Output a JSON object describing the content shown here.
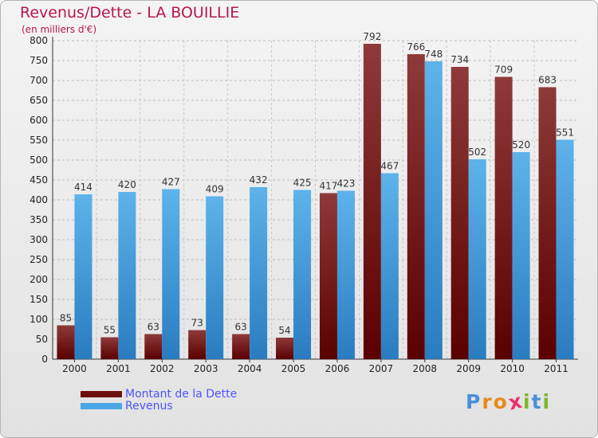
{
  "header": {
    "title": "Revenus/Dette - LA BOUILLIE",
    "subtitle": "(en milliers d'€)"
  },
  "colors": {
    "debt": "#7a1f1f",
    "revenue": "#55aee8",
    "title": "#b8174a",
    "legend_text": "#4f52ff"
  },
  "chart_data": {
    "type": "bar",
    "categories": [
      "2000",
      "2001",
      "2002",
      "2003",
      "2004",
      "2005",
      "2006",
      "2007",
      "2008",
      "2009",
      "2010",
      "2011"
    ],
    "series": [
      {
        "name": "Montant de la Dette",
        "values": [
          85,
          55,
          63,
          73,
          63,
          54,
          417,
          792,
          766,
          734,
          709,
          683
        ]
      },
      {
        "name": "Revenus",
        "values": [
          414,
          420,
          427,
          409,
          432,
          425,
          423,
          467,
          748,
          502,
          520,
          551
        ]
      }
    ],
    "ylim": [
      0,
      800
    ],
    "yticks": [
      0,
      50,
      100,
      150,
      200,
      250,
      300,
      350,
      400,
      450,
      500,
      550,
      600,
      650,
      700,
      750,
      800
    ],
    "grid": true,
    "legend_position": "bottom-left"
  },
  "legend": {
    "items": [
      {
        "label": "Montant de la Dette",
        "color": "#6e0f0f"
      },
      {
        "label": "Revenus",
        "color": "#4aa6e6"
      }
    ]
  },
  "logo": {
    "letters": [
      "P",
      "r",
      "o",
      "x",
      "i",
      "t",
      "i"
    ],
    "colors": [
      "#4a8fd8",
      "#e88a1a",
      "#e88a1a",
      "#e8306e",
      "#79b82a",
      "#4a8fd8",
      "#79b82a"
    ]
  }
}
